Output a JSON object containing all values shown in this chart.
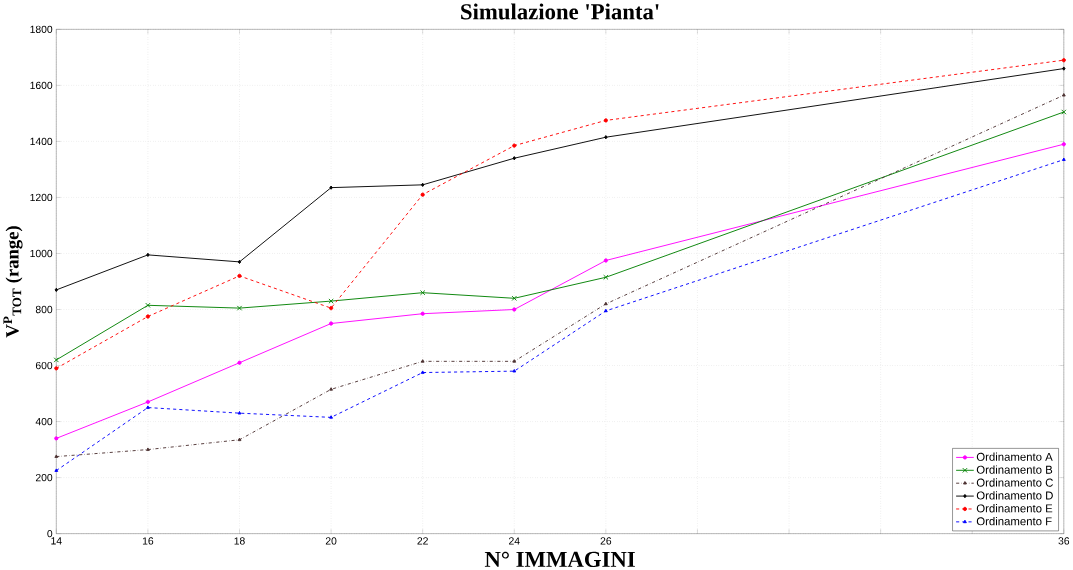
{
  "chart_data": {
    "type": "line",
    "title": "Simulazione 'Pianta'",
    "xlabel": "N° IMMAGINI",
    "ylabel": "V$^{P}$$_{TOT}$ (range)",
    "x": [
      14,
      16,
      18,
      20,
      22,
      24,
      26,
      36
    ],
    "xlim": [
      14,
      36
    ],
    "ylim": [
      0,
      1800
    ],
    "xticks": [
      14,
      16,
      18,
      20,
      22,
      24,
      26,
      {
        "value": 28,
        "label": null
      },
      {
        "value": 30,
        "label": null
      },
      {
        "value": 32,
        "label": null
      },
      {
        "value": 34,
        "label": null
      },
      36
    ],
    "yticks": [
      0,
      200,
      400,
      600,
      800,
      1000,
      1200,
      1400,
      1600,
      1800
    ],
    "grid": true,
    "legend": "bottom right",
    "series": [
      {
        "name": "Ordinamento A",
        "color": "#ff00ff",
        "marker": "circle",
        "line_style": "solid",
        "values": [
          340,
          470,
          610,
          750,
          785,
          800,
          975,
          1390
        ]
      },
      {
        "name": "Ordinamento B",
        "color": "#008000",
        "marker": "cross",
        "line_style": "solid",
        "values": [
          620,
          815,
          805,
          830,
          860,
          840,
          915,
          1505
        ]
      },
      {
        "name": "Ordinamento C",
        "color": "#4d3333",
        "marker": "triangle",
        "line_style": "dashdot",
        "values": [
          275,
          300,
          335,
          515,
          615,
          615,
          820,
          1565
        ]
      },
      {
        "name": "Ordinamento D",
        "color": "#000000",
        "marker": "diamond",
        "line_style": "solid",
        "values": [
          870,
          995,
          970,
          1235,
          1245,
          1340,
          1415,
          1660
        ]
      },
      {
        "name": "Ordinamento E",
        "color": "#ff0000",
        "marker": "circle",
        "line_style": "dashed",
        "values": [
          590,
          775,
          920,
          805,
          1210,
          1385,
          1475,
          1690
        ]
      },
      {
        "name": "Ordinamento F",
        "color": "#0000ff",
        "marker": "triangle",
        "line_style": "dashed",
        "values": [
          225,
          450,
          430,
          415,
          575,
          580,
          795,
          1335
        ]
      }
    ]
  }
}
